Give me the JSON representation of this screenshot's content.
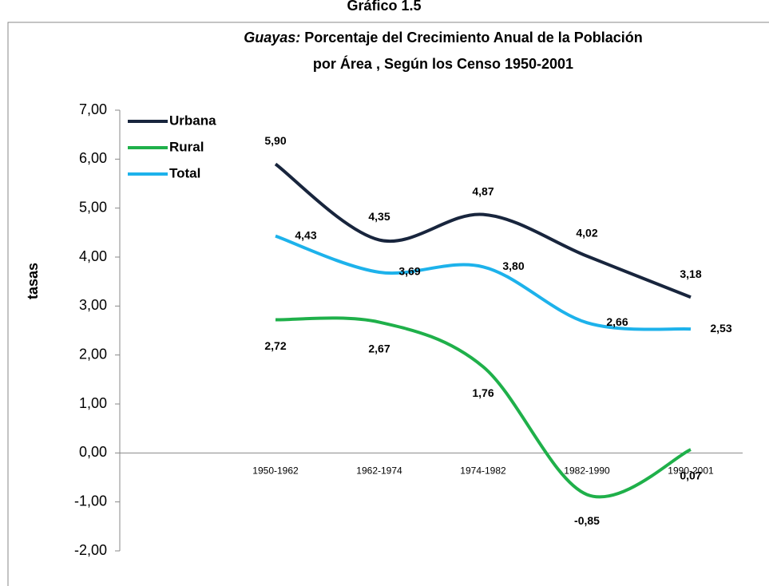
{
  "chart_data": {
    "type": "line",
    "supertitle": "Gráfico 1.5",
    "title": [
      "Guayas:",
      "Porcentaje del Crecimiento Anual de la Población",
      "por Área , Según los Censo 1950-2001"
    ],
    "y_label": "tasas",
    "categories": [
      "1950-1962",
      "1962-1974",
      "1974-1982",
      "1982-1990",
      "1990-2001"
    ],
    "series": [
      {
        "name": "Urbana",
        "color": "#18253d",
        "values": [
          5.9,
          4.35,
          4.87,
          4.02,
          3.18
        ],
        "value_labels": [
          "5,90",
          "4,35",
          "4,87",
          "4,02",
          "3,18"
        ]
      },
      {
        "name": "Rural",
        "color": "#1fb04a",
        "values": [
          2.72,
          2.67,
          1.76,
          -0.85,
          0.07
        ],
        "value_labels": [
          "2,72",
          "2,67",
          "1,76",
          "-0,85",
          "0,07"
        ]
      },
      {
        "name": "Total",
        "color": "#1db2eb",
        "values": [
          4.43,
          3.69,
          3.8,
          2.66,
          2.53
        ],
        "value_labels": [
          "4,43",
          "3,69",
          "3,80",
          "2,66",
          "2,53"
        ]
      }
    ],
    "ylim": [
      -2,
      7
    ],
    "yticks": [
      {
        "value": -2,
        "label": "-2,00"
      },
      {
        "value": -1,
        "label": "-1,00"
      },
      {
        "value": 0,
        "label": "0,00"
      },
      {
        "value": 1,
        "label": "1,00"
      },
      {
        "value": 2,
        "label": "2,00"
      },
      {
        "value": 3,
        "label": "3,00"
      },
      {
        "value": 4,
        "label": "4,00"
      },
      {
        "value": 5,
        "label": "5,00"
      },
      {
        "value": 6,
        "label": "6,00"
      },
      {
        "value": 7,
        "label": "7,00"
      }
    ],
    "legend": "top-left",
    "smooth": true
  }
}
